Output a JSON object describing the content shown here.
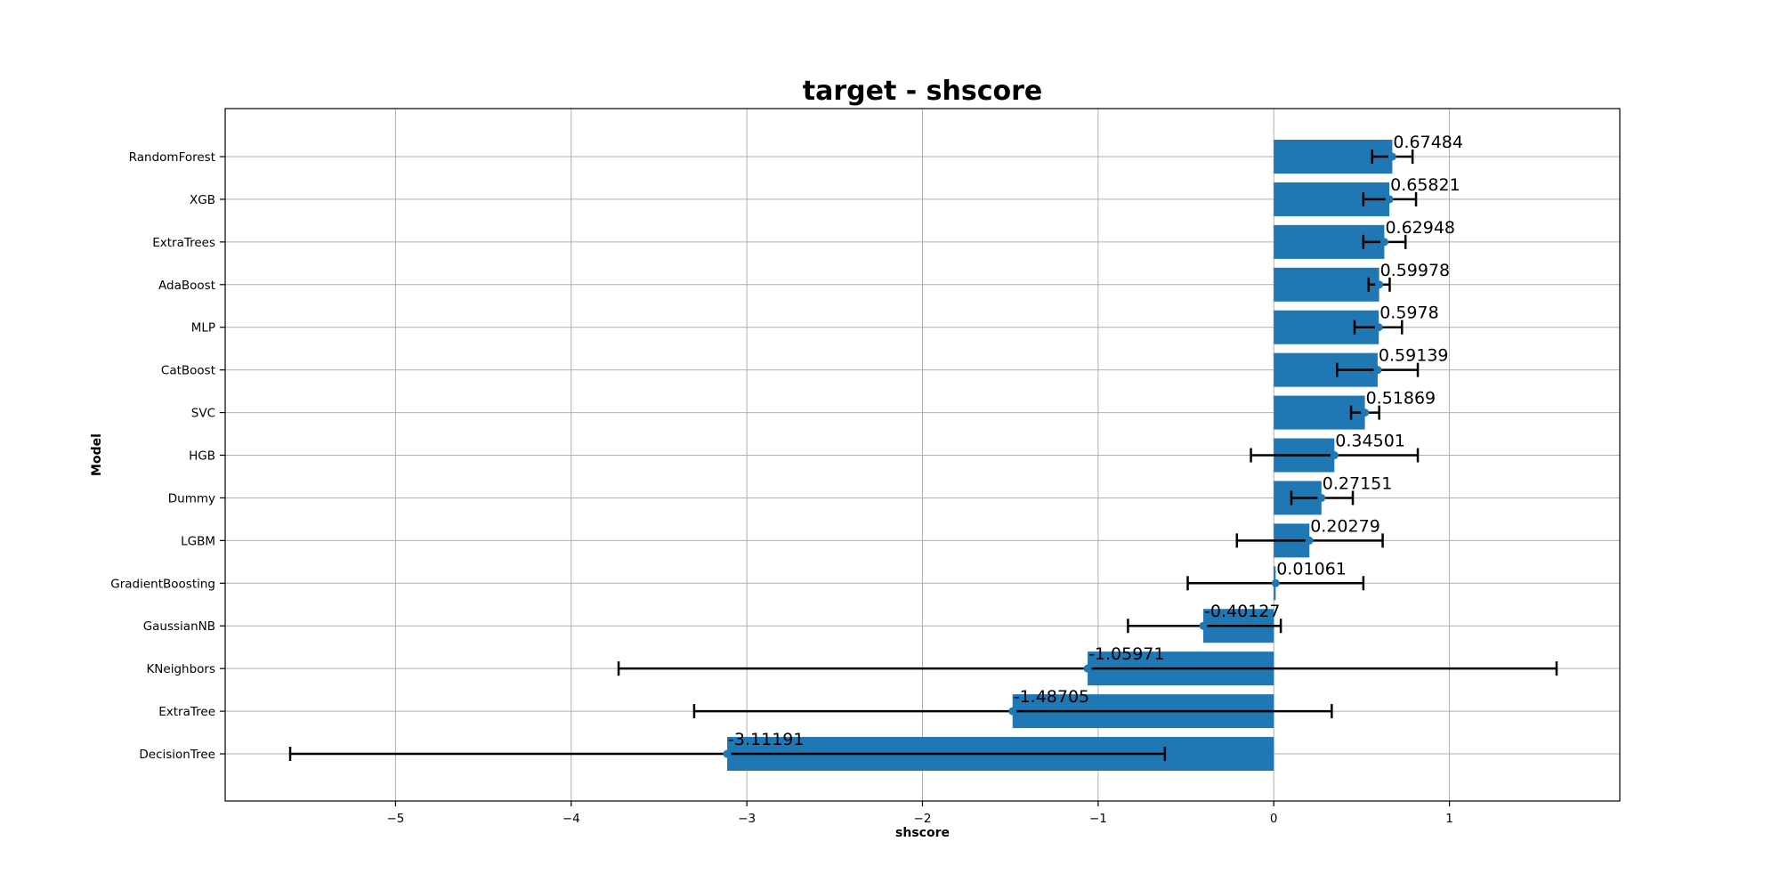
{
  "chart_data": {
    "type": "bar",
    "orientation": "horizontal",
    "title": "target - shscore",
    "xlabel": "shscore",
    "ylabel": "Model",
    "xlim": [
      -5.97,
      1.97
    ],
    "xticks": [
      -5,
      -4,
      -3,
      -2,
      -1,
      0,
      1
    ],
    "xtick_labels": [
      "−5",
      "−4",
      "−3",
      "−2",
      "−1",
      "0",
      "1"
    ],
    "grid": true,
    "bar_color": "#1f77b4",
    "categories": [
      "RandomForest",
      "XGB",
      "ExtraTrees",
      "AdaBoost",
      "MLP",
      "CatBoost",
      "SVC",
      "HGB",
      "Dummy",
      "LGBM",
      "GradientBoosting",
      "GaussianNB",
      "KNeighbors",
      "ExtraTree",
      "DecisionTree"
    ],
    "values": [
      0.67484,
      0.65821,
      0.62948,
      0.59978,
      0.5978,
      0.59139,
      0.51869,
      0.34501,
      0.27151,
      0.20279,
      0.01061,
      -0.40127,
      -1.05971,
      -1.48705,
      -3.11191
    ],
    "value_labels": [
      "0.67484",
      "0.65821",
      "0.62948",
      "0.59978",
      "0.5978",
      "0.59139",
      "0.51869",
      "0.34501",
      "0.27151",
      "0.20279",
      "0.01061",
      "-0.40127",
      "-1.05971",
      "-1.48705",
      "-3.11191"
    ],
    "error_low": [
      0.56,
      0.51,
      0.51,
      0.54,
      0.46,
      0.36,
      0.44,
      -0.13,
      0.1,
      -0.21,
      -0.49,
      -0.83,
      -3.73,
      -3.3,
      -5.6
    ],
    "error_high": [
      0.79,
      0.81,
      0.75,
      0.66,
      0.73,
      0.82,
      0.6,
      0.82,
      0.45,
      0.62,
      0.51,
      0.04,
      1.61,
      0.33,
      -0.62
    ]
  }
}
